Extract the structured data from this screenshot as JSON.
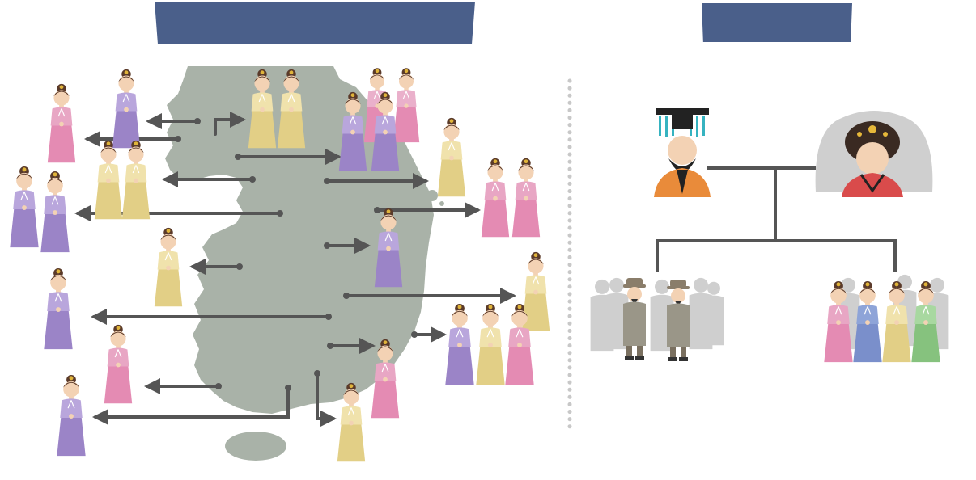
{
  "banners": {
    "left_title": "",
    "right_title": ""
  },
  "colors": {
    "banner": "#4a5f8a",
    "land": "#a9b2a8",
    "arrow": "#555555",
    "divider": "#c8c8c8",
    "hanbok_pink": "#e8a6c4",
    "hanbok_purple": "#a891cc",
    "hanbok_yellow": "#ead99c",
    "hanbok_green": "#9ecf97",
    "hanbok_blue": "#8ea4d8"
  },
  "icons": {
    "map": "korean-peninsula-map",
    "court_lady": "court-lady-figure",
    "king": "king-figure",
    "queen": "queen-figure",
    "official": "official-figure"
  }
}
